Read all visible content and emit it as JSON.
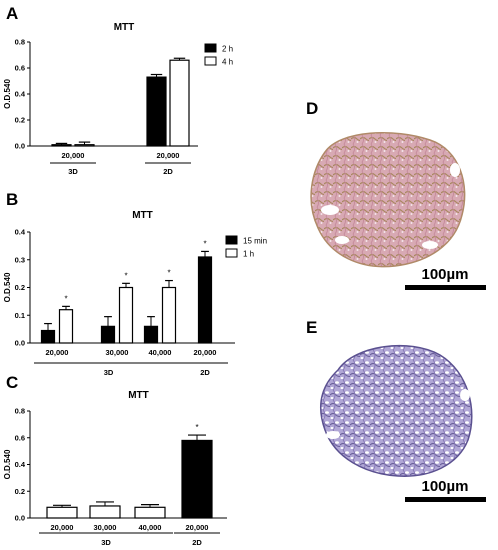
{
  "panels": {
    "a": "A",
    "b": "B",
    "c": "C",
    "d": "D",
    "e": "E"
  },
  "scale_bar_label": "100µm",
  "colors": {
    "filled": "#000000",
    "open": "#ffffff",
    "sphere_d": "#c99aa6",
    "sphere_e": "#9a8fc8"
  },
  "chart_data": [
    {
      "type": "bar",
      "title": "MTT",
      "ylabel": "O.D.540",
      "ylim": [
        0,
        0.8
      ],
      "yticks": [
        "0.0",
        "0.2",
        "0.4",
        "0.6",
        "0.8"
      ],
      "legend": "top-right",
      "series": [
        {
          "name": "2 h"
        },
        {
          "name": "4 h"
        }
      ],
      "groups": [
        {
          "label": "20,000",
          "section": "3D",
          "bars": [
            {
              "series": 0,
              "value": 0.01,
              "err": 0.01
            },
            {
              "series": 1,
              "value": 0.01,
              "err": 0.02
            }
          ]
        },
        {
          "label": "20,000",
          "section": "2D",
          "bars": [
            {
              "series": 0,
              "value": 0.53,
              "err": 0.02
            },
            {
              "series": 1,
              "value": 0.66,
              "err": 0.015
            }
          ]
        }
      ],
      "sections": [
        "3D",
        "2D"
      ]
    },
    {
      "type": "bar",
      "title": "MTT",
      "ylabel": "O.D.540",
      "ylim": [
        0,
        0.4
      ],
      "yticks": [
        "0.0",
        "0.1",
        "0.2",
        "0.3",
        "0.4"
      ],
      "legend": "top-right",
      "series": [
        {
          "name": "15 min"
        },
        {
          "name": "1 h"
        }
      ],
      "groups": [
        {
          "label": "20,000",
          "section": "3D",
          "bars": [
            {
              "series": 0,
              "value": 0.045,
              "err": 0.025
            },
            {
              "series": 1,
              "value": 0.12,
              "err": 0.012,
              "star": "*"
            }
          ]
        },
        {
          "label": "30,000",
          "section": "3D",
          "bars": [
            {
              "series": 0,
              "value": 0.06,
              "err": 0.035
            },
            {
              "series": 1,
              "value": 0.2,
              "err": 0.015,
              "star": "*"
            }
          ]
        },
        {
          "label": "40,000",
          "section": "3D",
          "bars": [
            {
              "series": 0,
              "value": 0.06,
              "err": 0.035
            },
            {
              "series": 1,
              "value": 0.2,
              "err": 0.025,
              "star": "*"
            }
          ]
        },
        {
          "label": "20,000",
          "section": "2D",
          "bars": [
            {
              "series": 0,
              "value": 0.31,
              "err": 0.02,
              "star": "*"
            }
          ]
        }
      ],
      "sections": [
        "3D",
        "2D"
      ]
    },
    {
      "type": "bar",
      "title": "MTT",
      "ylabel": "O.D.540",
      "ylim": [
        0,
        0.8
      ],
      "yticks": [
        "0.0",
        "0.2",
        "0.4",
        "0.6",
        "0.8"
      ],
      "legend": "none",
      "series": [
        {
          "name": ""
        },
        {
          "name": ""
        }
      ],
      "groups": [
        {
          "label": "20,000",
          "section": "3D",
          "bars": [
            {
              "series": 1,
              "value": 0.08,
              "err": 0.015
            }
          ]
        },
        {
          "label": "30,000",
          "section": "3D",
          "bars": [
            {
              "series": 1,
              "value": 0.09,
              "err": 0.03
            }
          ]
        },
        {
          "label": "40,000",
          "section": "3D",
          "bars": [
            {
              "series": 1,
              "value": 0.08,
              "err": 0.02
            }
          ]
        },
        {
          "label": "20,000",
          "section": "2D",
          "bars": [
            {
              "series": 0,
              "value": 0.58,
              "err": 0.04,
              "star": "*"
            }
          ]
        }
      ],
      "sections": [
        "3D",
        "2D"
      ]
    }
  ]
}
